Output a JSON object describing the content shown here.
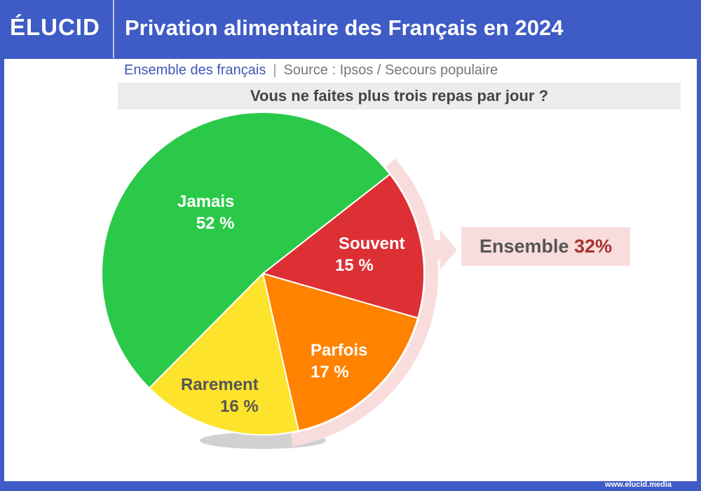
{
  "header": {
    "logo": "ÉLUCID",
    "title": "Privation alimentaire des Français en 2024"
  },
  "subtitle": {
    "population": "Ensemble des français",
    "separator": "|",
    "source": "Source : Ipsos / Secours populaire"
  },
  "chart_data": {
    "type": "pie",
    "title": "Vous ne faites plus trois repas par jour ?",
    "slices": [
      {
        "label": "Souvent",
        "value": 15,
        "display": "15 %",
        "color": "#dc3035"
      },
      {
        "label": "Parfois",
        "value": 17,
        "display": "17 %",
        "color": "#ff8200"
      },
      {
        "label": "Rarement",
        "value": 16,
        "display": "16 %",
        "color": "#fde32b"
      },
      {
        "label": "Jamais",
        "value": 52,
        "display": "52 %",
        "color": "#2ac94a"
      }
    ],
    "annotation": {
      "label": "Ensemble",
      "value": "32%",
      "highlight_color": "#f9dcdc"
    }
  },
  "footer": {
    "url": "www.elucid.media"
  }
}
